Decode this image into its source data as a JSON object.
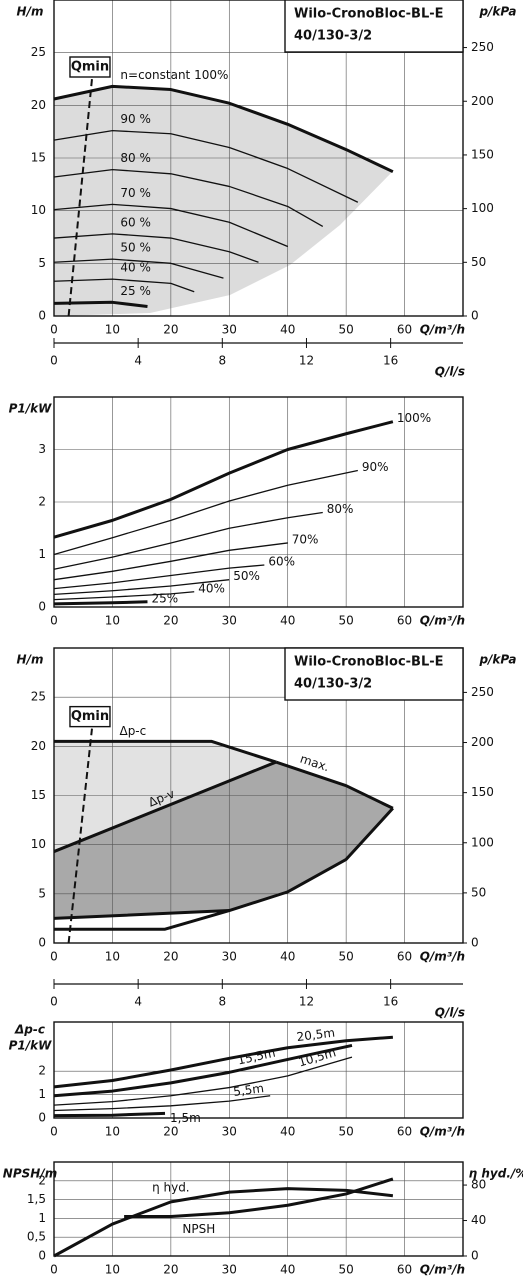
{
  "chart_data": [
    {
      "type": "line",
      "title": "Wilo-CronoBloc-BL-E",
      "subtitle": "40/130-3/2",
      "ylabel": [
        "H/m"
      ],
      "y2label": "p/kPa",
      "xlabel": "Q/m³/h",
      "grid": true,
      "xlim": [
        0,
        70
      ],
      "xticks": [
        0,
        10,
        20,
        30,
        40,
        50,
        60
      ],
      "ylim": [
        0,
        30
      ],
      "yticks": [
        0,
        5,
        10,
        15,
        20,
        25
      ],
      "y2lim": [
        0,
        294.3
      ],
      "y2ticks": [
        0,
        50,
        100,
        150,
        200,
        250
      ],
      "series": [
        {
          "name": "n=constant 100%",
          "color": "#111",
          "style": "thick",
          "x": [
            0,
            10,
            20,
            30,
            40,
            50,
            58
          ],
          "values": [
            20.6,
            21.8,
            21.5,
            20.2,
            18.2,
            15.8,
            13.7
          ]
        },
        {
          "name": "90 %",
          "color": "#111",
          "style": "thin",
          "x": [
            0,
            10,
            20,
            30,
            40,
            52
          ],
          "values": [
            16.7,
            17.6,
            17.3,
            16,
            14,
            10.8
          ]
        },
        {
          "name": "80 %",
          "color": "#111",
          "style": "thin",
          "x": [
            0,
            10,
            20,
            30,
            40,
            46
          ],
          "values": [
            13.2,
            13.9,
            13.5,
            12.3,
            10.4,
            8.5
          ]
        },
        {
          "name": "70 %",
          "color": "#111",
          "style": "thin",
          "x": [
            0,
            10,
            20,
            30,
            40
          ],
          "values": [
            10.1,
            10.6,
            10.2,
            8.9,
            6.6
          ]
        },
        {
          "name": "60 %",
          "color": "#111",
          "style": "thin",
          "x": [
            0,
            10,
            20,
            30,
            35
          ],
          "values": [
            7.4,
            7.8,
            7.4,
            6.1,
            5.1
          ]
        },
        {
          "name": "50 %",
          "color": "#111",
          "style": "thin",
          "x": [
            0,
            10,
            20,
            29
          ],
          "values": [
            5.1,
            5.4,
            5.0,
            3.6
          ]
        },
        {
          "name": "40 %",
          "color": "#111",
          "style": "thin",
          "x": [
            0,
            10,
            20,
            24
          ],
          "values": [
            3.3,
            3.5,
            3.1,
            2.3
          ]
        },
        {
          "name": "25 %",
          "color": "#111",
          "style": "thick",
          "x": [
            0,
            10,
            16
          ],
          "values": [
            1.2,
            1.3,
            0.9
          ]
        },
        {
          "name": "Qmin",
          "color": "#111",
          "style": "dashed",
          "x": [
            2.5,
            6.5
          ],
          "values": [
            0,
            22.5
          ]
        }
      ]
    },
    {
      "type": "axis",
      "xlabel": "Q/l/s",
      "xlim": [
        0,
        19.44
      ],
      "xticks": [
        0,
        4,
        8,
        12,
        16
      ]
    },
    {
      "type": "line",
      "ylabel": [
        "P1/kW"
      ],
      "xlabel": "Q/m³/h",
      "grid": true,
      "xlim": [
        0,
        70
      ],
      "xticks": [
        0,
        10,
        20,
        30,
        40,
        50,
        60
      ],
      "ylim": [
        0,
        4
      ],
      "yticks": [
        0,
        1,
        2,
        3
      ],
      "series": [
        {
          "name": "100%",
          "color": "#111",
          "style": "thick",
          "x": [
            0,
            10,
            20,
            30,
            40,
            50,
            58
          ],
          "values": [
            1.33,
            1.65,
            2.05,
            2.55,
            3.0,
            3.3,
            3.53
          ]
        },
        {
          "name": "90%",
          "color": "#111",
          "style": "thin",
          "x": [
            0,
            10,
            20,
            30,
            40,
            52
          ],
          "values": [
            1.0,
            1.32,
            1.65,
            2.02,
            2.32,
            2.6
          ]
        },
        {
          "name": "80%",
          "color": "#111",
          "style": "thin",
          "x": [
            0,
            10,
            20,
            30,
            40,
            46
          ],
          "values": [
            0.72,
            0.95,
            1.22,
            1.5,
            1.7,
            1.8
          ]
        },
        {
          "name": "70%",
          "color": "#111",
          "style": "thin",
          "x": [
            0,
            10,
            20,
            30,
            40
          ],
          "values": [
            0.52,
            0.68,
            0.87,
            1.08,
            1.22
          ]
        },
        {
          "name": "60%",
          "color": "#111",
          "style": "thin",
          "x": [
            0,
            10,
            20,
            30,
            36
          ],
          "values": [
            0.35,
            0.46,
            0.6,
            0.74,
            0.8
          ]
        },
        {
          "name": "50%",
          "color": "#111",
          "style": "thin",
          "x": [
            0,
            10,
            20,
            30
          ],
          "values": [
            0.24,
            0.31,
            0.4,
            0.52
          ]
        },
        {
          "name": "40%",
          "color": "#111",
          "style": "thin",
          "x": [
            0,
            10,
            20,
            24
          ],
          "values": [
            0.14,
            0.19,
            0.25,
            0.29
          ]
        },
        {
          "name": "25%",
          "color": "#111",
          "style": "thick",
          "x": [
            0,
            10,
            16
          ],
          "values": [
            0.06,
            0.08,
            0.1
          ]
        }
      ]
    },
    {
      "type": "line",
      "title": "Wilo-CronoBloc-BL-E",
      "subtitle": "40/130-3/2",
      "ylabel": [
        "H/m"
      ],
      "y2label": "p/kPa",
      "xlabel": "Q/m³/h",
      "grid": true,
      "xlim": [
        0,
        70
      ],
      "xticks": [
        0,
        10,
        20,
        30,
        40,
        50,
        60
      ],
      "ylim": [
        0,
        30
      ],
      "yticks": [
        0,
        5,
        10,
        15,
        20,
        25
      ],
      "y2lim": [
        0,
        294.3
      ],
      "y2ticks": [
        0,
        50,
        100,
        150,
        200,
        250
      ],
      "series": [
        {
          "name": "Qmin",
          "color": "#111",
          "style": "dashed",
          "x": [
            2.5,
            6.5
          ],
          "values": [
            0,
            21.8
          ]
        },
        {
          "name": "Δp-c",
          "color": "#111",
          "style": "thick",
          "x": [
            0,
            27,
            38
          ],
          "values": [
            20.5,
            20.5,
            18.4
          ]
        },
        {
          "name": "Δp-v",
          "color": "#111",
          "style": "thick",
          "x": [
            0,
            38
          ],
          "values": [
            9.3,
            18.4
          ]
        },
        {
          "name": "max.",
          "color": "#111",
          "style": "thick",
          "x": [
            38,
            50,
            58
          ],
          "values": [
            18.4,
            16,
            13.7
          ]
        },
        {
          "color": "#111",
          "style": "thick",
          "x": [
            58,
            50,
            40,
            30,
            0
          ],
          "values": [
            13.7,
            8.5,
            5.2,
            3.3,
            2.5
          ]
        },
        {
          "color": "#111",
          "style": "thick",
          "x": [
            0,
            19,
            30
          ],
          "values": [
            1.4,
            1.4,
            3.3
          ]
        }
      ]
    },
    {
      "type": "axis",
      "xlabel": "Q/l/s",
      "xlim": [
        0,
        19.44
      ],
      "xticks": [
        0,
        4,
        8,
        12,
        16
      ]
    },
    {
      "type": "line",
      "ylabel": [
        "Δp-c",
        "P1/kW"
      ],
      "xlabel": "Q/m³/h",
      "grid": true,
      "xlim": [
        0,
        70
      ],
      "xticks": [
        0,
        10,
        20,
        30,
        40,
        50,
        60
      ],
      "ylim": [
        0,
        4.1
      ],
      "yticks": [
        0,
        1,
        2
      ],
      "series": [
        {
          "name": "20,5m",
          "color": "#111",
          "style": "thick",
          "x": [
            0,
            10,
            20,
            30,
            40,
            50,
            58
          ],
          "values": [
            1.33,
            1.6,
            2.05,
            2.55,
            3.0,
            3.3,
            3.45
          ]
        },
        {
          "name": "15,5m",
          "color": "#111",
          "style": "thick",
          "x": [
            0,
            10,
            20,
            30,
            40,
            51
          ],
          "values": [
            0.95,
            1.15,
            1.5,
            1.95,
            2.5,
            3.1
          ]
        },
        {
          "name": "10,5m",
          "color": "#111",
          "style": "thin",
          "x": [
            0,
            10,
            20,
            30,
            40,
            51
          ],
          "values": [
            0.55,
            0.7,
            0.95,
            1.3,
            1.8,
            2.6
          ]
        },
        {
          "name": "5,5m",
          "color": "#111",
          "style": "thin",
          "x": [
            0,
            10,
            20,
            30,
            37
          ],
          "values": [
            0.32,
            0.4,
            0.52,
            0.72,
            0.95
          ]
        },
        {
          "name": "1,5m",
          "color": "#111",
          "style": "thick",
          "x": [
            0,
            10,
            19
          ],
          "values": [
            0.1,
            0.12,
            0.2
          ]
        }
      ]
    },
    {
      "type": "line",
      "ylabel": [
        "NPSH/m"
      ],
      "y2label": "η hyd./%",
      "xlabel": "Q/m³/h",
      "grid": true,
      "xlim": [
        0,
        70
      ],
      "xticks": [
        0,
        10,
        20,
        30,
        40,
        50,
        60
      ],
      "ylim": [
        0,
        2.5
      ],
      "yticks": [
        0,
        {
          "value": 0.5,
          "label": "0,5"
        },
        1,
        {
          "value": 1.5,
          "label": "1,5"
        },
        2
      ],
      "y2lim": [
        0,
        106
      ],
      "y2ticks": [
        0,
        40,
        80
      ],
      "series": [
        {
          "name": "NPSH",
          "color": "#111",
          "style": "thick",
          "x": [
            12,
            20,
            30,
            40,
            50,
            58
          ],
          "values": [
            1.05,
            1.05,
            1.15,
            1.35,
            1.65,
            2.05
          ]
        },
        {
          "name": "η hyd.",
          "color": "#111",
          "style": "thick",
          "axis": "y2",
          "x": [
            0,
            10,
            20,
            30,
            40,
            50,
            58
          ],
          "values": [
            0,
            36,
            61,
            72,
            76,
            74,
            68
          ]
        }
      ]
    }
  ]
}
